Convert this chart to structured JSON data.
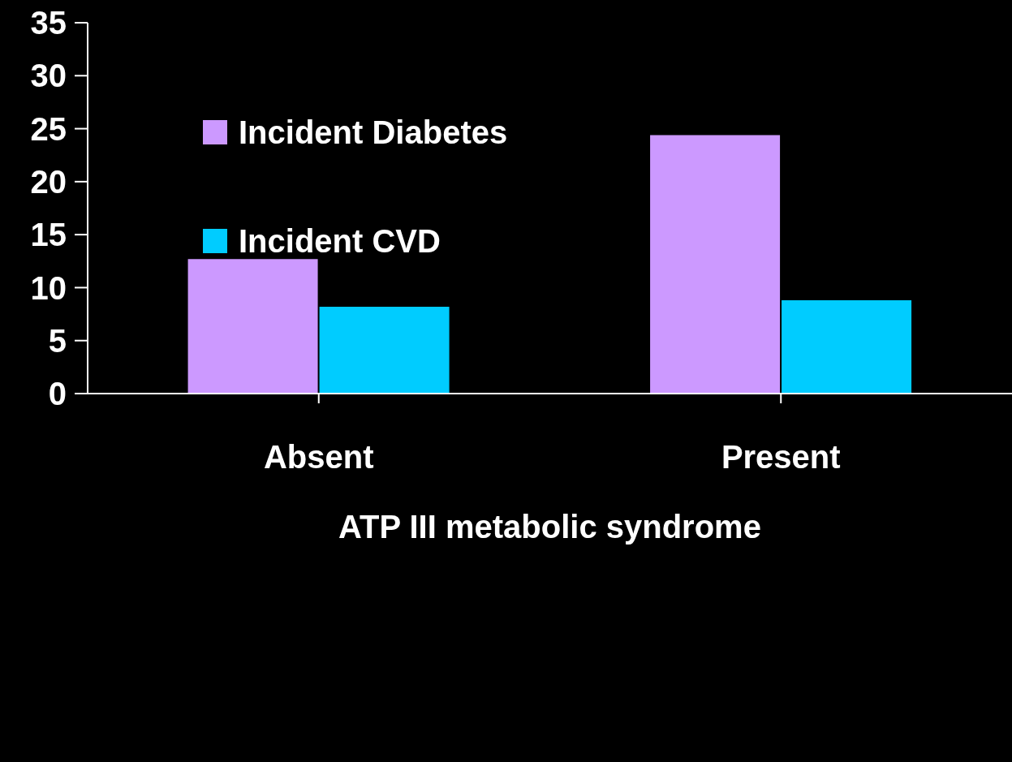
{
  "chart_data": {
    "type": "bar",
    "xlabel": "ATP III metabolic syndrome",
    "categories": [
      "Absent",
      "Present"
    ],
    "series": [
      {
        "name": "Incident Diabetes",
        "color": "#cc99ff",
        "values": [
          12.7,
          24.4
        ]
      },
      {
        "name": "Incident CVD",
        "color": "#00ccff",
        "values": [
          8.2,
          8.8
        ]
      }
    ],
    "ylim": [
      0,
      35
    ],
    "yticks": [
      0,
      5,
      10,
      15,
      20,
      25,
      30,
      35
    ],
    "grid": false,
    "legend": "top left"
  }
}
